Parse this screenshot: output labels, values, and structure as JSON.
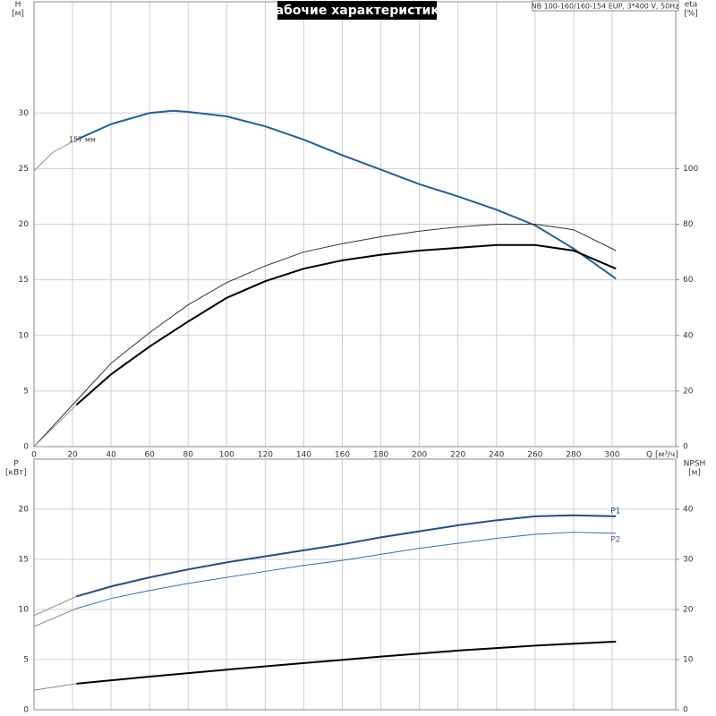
{
  "chart_data": [
    {
      "type": "line",
      "title": "Рабочие характеристики",
      "legend_text": "NB 100-160/160-154 EUP, 3*400 V, 50Hz",
      "annotation": "157 мм",
      "y_label": "H",
      "y_unit": "[м]",
      "y2_label": "eta",
      "y2_unit": "[%]",
      "x_label": "Q [м³/ч]",
      "xlim": [
        0,
        333
      ],
      "xticks": [
        0,
        20,
        40,
        60,
        80,
        100,
        120,
        140,
        160,
        180,
        200,
        220,
        240,
        260,
        280,
        300
      ],
      "ylim": [
        0,
        40
      ],
      "yticks": [
        0,
        5,
        10,
        15,
        20,
        25,
        30
      ],
      "y2lim": [
        0,
        160
      ],
      "y2ticks": [
        0,
        20,
        40,
        60,
        80,
        100
      ],
      "grid": true,
      "series": [
        {
          "color": "#8a8a8a",
          "style": "thin",
          "x": [
            0,
            10,
            22
          ],
          "values": [
            24.8,
            26.5,
            27.6
          ]
        },
        {
          "color": "#1f5fa0",
          "style": "thick",
          "x": [
            22,
            40,
            60,
            72,
            80,
            100,
            120,
            140,
            160,
            180,
            200,
            220,
            240,
            260,
            280,
            302
          ],
          "values": [
            27.6,
            29.0,
            30.0,
            30.2,
            30.1,
            29.7,
            28.8,
            27.6,
            26.2,
            24.9,
            23.6,
            22.5,
            21.3,
            19.9,
            17.8,
            15.1
          ]
        },
        {
          "color": "#333333",
          "style": "thin",
          "axis": "y2",
          "x": [
            0,
            22,
            40,
            60,
            80,
            100,
            120,
            140,
            160,
            180,
            200,
            220,
            240,
            260,
            280,
            302
          ],
          "values": [
            0,
            16.5,
            30,
            41,
            51,
            59,
            65,
            70,
            73,
            75.5,
            77.5,
            79,
            80,
            80,
            78,
            70.5
          ]
        },
        {
          "color": "#999999",
          "style": "thin",
          "axis": "y2",
          "x": [
            0,
            22
          ],
          "values": [
            0,
            15
          ]
        },
        {
          "color": "#000000",
          "style": "thick",
          "axis": "y2",
          "x": [
            22,
            40,
            60,
            80,
            100,
            120,
            140,
            160,
            180,
            200,
            220,
            240,
            260,
            280,
            302
          ],
          "values": [
            15,
            26,
            36,
            45,
            53.5,
            59.5,
            64,
            67,
            69,
            70.5,
            71.5,
            72.5,
            72.5,
            70.5,
            64
          ]
        }
      ]
    },
    {
      "type": "line",
      "y_label": "P",
      "y_unit": "[кВт]",
      "y2_label": "NPSH",
      "y2_unit": "[м]",
      "xlim": [
        0,
        333
      ],
      "xticks": [
        0,
        20,
        40,
        60,
        80,
        100,
        120,
        140,
        160,
        180,
        200,
        220,
        240,
        260,
        280,
        300
      ],
      "ylim": [
        0,
        25
      ],
      "yticks": [
        0,
        5,
        10,
        15,
        20
      ],
      "y2lim": [
        0,
        50
      ],
      "y2ticks": [
        0,
        10,
        20,
        30,
        40
      ],
      "grid": true,
      "series": [
        {
          "color": "#8a8a8a",
          "style": "thin",
          "x": [
            0,
            22
          ],
          "values": [
            9.4,
            11.3
          ]
        },
        {
          "color": "#1f4f8a",
          "style": "thick",
          "label": "P1",
          "x": [
            22,
            40,
            60,
            80,
            100,
            120,
            140,
            160,
            180,
            200,
            220,
            240,
            260,
            280,
            302
          ],
          "values": [
            11.3,
            12.3,
            13.2,
            14.0,
            14.7,
            15.3,
            15.9,
            16.5,
            17.2,
            17.8,
            18.4,
            18.9,
            19.3,
            19.4,
            19.3
          ]
        },
        {
          "color": "#8a8a8a",
          "style": "thin",
          "x": [
            0,
            22
          ],
          "values": [
            8.3,
            10.1
          ]
        },
        {
          "color": "#3a6ea8",
          "style": "thin",
          "label": "P2",
          "x": [
            22,
            40,
            60,
            80,
            100,
            120,
            140,
            160,
            180,
            200,
            220,
            240,
            260,
            280,
            302
          ],
          "values": [
            10.1,
            11.1,
            11.9,
            12.6,
            13.2,
            13.8,
            14.4,
            14.9,
            15.5,
            16.1,
            16.6,
            17.1,
            17.5,
            17.7,
            17.6
          ]
        },
        {
          "color": "#8a8a8a",
          "style": "thin",
          "axis": "y2",
          "x": [
            0,
            22
          ],
          "values": [
            3.9,
            5.2
          ]
        },
        {
          "color": "#000000",
          "style": "thick",
          "axis": "y2",
          "x": [
            22,
            60,
            100,
            140,
            180,
            220,
            260,
            302
          ],
          "values": [
            5.2,
            6.6,
            8.0,
            9.3,
            10.6,
            11.8,
            12.8,
            13.6
          ]
        }
      ]
    }
  ]
}
